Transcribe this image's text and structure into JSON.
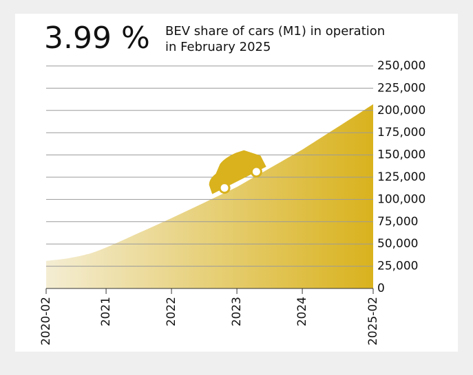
{
  "chart_data": {
    "type": "area",
    "headline": "3.99 %",
    "subtitle": [
      "BEV share of cars (M1) in operation",
      "in February 2025"
    ],
    "categories": [
      "2020-02",
      null,
      null,
      null,
      null,
      null,
      null,
      null,
      null,
      null,
      null,
      "2021",
      null,
      null,
      null,
      null,
      null,
      null,
      null,
      null,
      null,
      null,
      null,
      "2022",
      null,
      null,
      null,
      null,
      null,
      null,
      null,
      null,
      null,
      null,
      null,
      "2023",
      null,
      null,
      null,
      null,
      null,
      null,
      null,
      null,
      null,
      null,
      null,
      "2024",
      null,
      null,
      null,
      null,
      null,
      null,
      null,
      null,
      null,
      null,
      null,
      null,
      "2025-02"
    ],
    "values": [
      31000,
      31600,
      32200,
      33000,
      33900,
      35000,
      36200,
      37600,
      39200,
      41200,
      43500,
      46000,
      48600,
      51300,
      54000,
      56800,
      59600,
      62400,
      65100,
      67800,
      70600,
      73400,
      76200,
      79000,
      81900,
      84800,
      87700,
      90600,
      93500,
      96400,
      99300,
      102200,
      105100,
      108000,
      111000,
      114000,
      117500,
      121000,
      124500,
      128000,
      131500,
      135000,
      138500,
      142000,
      145500,
      149000,
      152500,
      156000,
      159900,
      163800,
      167700,
      171600,
      175500,
      179400,
      183300,
      187200,
      191100,
      195000,
      199000,
      203000,
      207000
    ],
    "color": [
      "#f4edd3",
      "#d9b21d"
    ],
    "ylim": [
      0,
      250000
    ],
    "yticks": [
      0,
      {
        "value": 25000,
        "label": "25,000"
      },
      {
        "value": 50000,
        "label": "50,000"
      },
      {
        "value": 75000,
        "label": "75,000"
      },
      {
        "value": 100000,
        "label": "100,000"
      },
      {
        "value": 125000,
        "label": "125,000"
      },
      {
        "value": 150000,
        "label": "150,000"
      },
      {
        "value": 175000,
        "label": "175,000"
      },
      {
        "value": 200000,
        "label": "200,000"
      },
      {
        "value": 225000,
        "label": "225,000"
      },
      {
        "value": 250000,
        "label": "250,000"
      }
    ],
    "grid": true
  }
}
